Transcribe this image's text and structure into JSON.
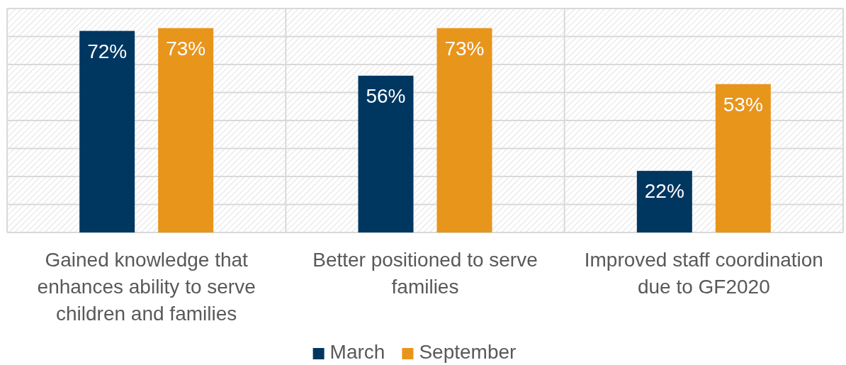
{
  "chart_data": {
    "type": "bar",
    "categories": [
      "Gained knowledge that enhances ability to serve children and families",
      "Better positioned to serve families",
      "Improved staff coordination due to GF2020"
    ],
    "series": [
      {
        "name": "March",
        "color": "#003761",
        "values": [
          72,
          56,
          22
        ],
        "value_labels": [
          "72%",
          "56%",
          "22%"
        ]
      },
      {
        "name": "September",
        "color": "#e8951c",
        "values": [
          73,
          73,
          53
        ],
        "value_labels": [
          "73%",
          "73%",
          "53%"
        ]
      }
    ],
    "ylim": [
      0,
      80
    ],
    "yticks": [
      {
        "value": 0,
        "label": null
      },
      {
        "value": 10,
        "label": null
      },
      {
        "value": 20,
        "label": null
      },
      {
        "value": 30,
        "label": null
      },
      {
        "value": 40,
        "label": null
      },
      {
        "value": 50,
        "label": null
      },
      {
        "value": 60,
        "label": null
      },
      {
        "value": 70,
        "label": null
      },
      {
        "value": 80,
        "label": null
      }
    ],
    "grid": true,
    "legend": "bottom"
  }
}
